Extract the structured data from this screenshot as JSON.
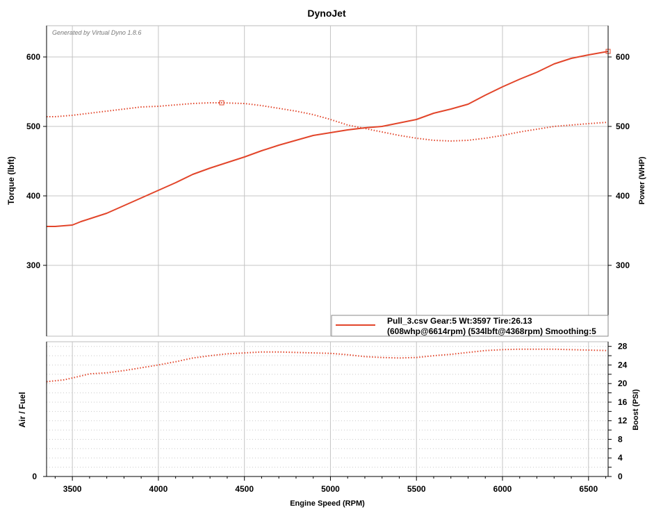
{
  "chart_data": [
    {
      "type": "line",
      "title": "DynoJet",
      "watermark": "Generated by Virtual Dyno 1.8.6",
      "xlabel": "Engine Speed (RPM)",
      "ylabel_left": "Torque (lbft)",
      "ylabel_right": "Power (WHP)",
      "xlim": [
        3350,
        6614
      ],
      "ylim": [
        198,
        645
      ],
      "x_ticks": [
        "3500",
        "4000",
        "4500",
        "5000",
        "5500",
        "6000",
        "6500"
      ],
      "x_tick_values": [
        3500,
        4000,
        4500,
        5000,
        5500,
        6000,
        6500
      ],
      "y_ticks_left": [
        "600",
        "500",
        "400",
        "300"
      ],
      "y_ticks_left_values": [
        600,
        500,
        400,
        300
      ],
      "y_ticks_right": [
        "600",
        "500",
        "400",
        "300"
      ],
      "y_ticks_right_values": [
        600,
        500,
        400,
        300
      ],
      "grid": true,
      "legend": {
        "line1": "Pull_3.csv Gear:5 Wt:3597 Tire:26.13",
        "line2": "(608whp@6614rpm) (534lbft@4368rpm) Smoothing:5",
        "placement": "bottom-right"
      },
      "colors": {
        "series": "#e2452a",
        "grid": "#c4c4c4"
      },
      "series": [
        {
          "role": "power",
          "style": "solid",
          "x": [
            3350,
            3400,
            3500,
            3550,
            3600,
            3700,
            3800,
            3900,
            4000,
            4100,
            4200,
            4300,
            4400,
            4500,
            4600,
            4700,
            4800,
            4900,
            5000,
            5100,
            5200,
            5300,
            5400,
            5500,
            5600,
            5700,
            5800,
            5900,
            6000,
            6100,
            6200,
            6300,
            6400,
            6500,
            6614
          ],
          "y": [
            356,
            356,
            358,
            363,
            367,
            375,
            386,
            397,
            408,
            419,
            431,
            440,
            448,
            456,
            465,
            473,
            480,
            487,
            491,
            495,
            498,
            500,
            505,
            510,
            519,
            525,
            532,
            545,
            557,
            568,
            578,
            590,
            598,
            603,
            608
          ]
        },
        {
          "role": "torque",
          "style": "dotted",
          "marker": {
            "x": 4368,
            "y": 534
          },
          "x": [
            3350,
            3400,
            3500,
            3600,
            3700,
            3800,
            3900,
            4000,
            4100,
            4200,
            4300,
            4368,
            4500,
            4600,
            4700,
            4800,
            4900,
            5000,
            5100,
            5200,
            5300,
            5400,
            5500,
            5600,
            5700,
            5800,
            5900,
            6000,
            6100,
            6200,
            6300,
            6400,
            6500,
            6614
          ],
          "y": [
            514,
            514,
            516,
            519,
            522,
            525,
            528,
            529,
            531,
            533,
            534,
            534,
            533,
            530,
            526,
            522,
            517,
            510,
            502,
            497,
            492,
            487,
            483,
            480,
            479,
            480,
            483,
            487,
            492,
            496,
            500,
            502,
            504,
            506
          ]
        }
      ]
    },
    {
      "type": "line",
      "ylabel_left": "Air / Fuel",
      "ylabel_right": "Boost (PSI)",
      "xlim": [
        3350,
        6614
      ],
      "ylim": [
        0,
        29
      ],
      "x_ticks": [
        "3500",
        "4000",
        "4500",
        "5000",
        "5500",
        "6000",
        "6500"
      ],
      "x_tick_values": [
        3500,
        4000,
        4500,
        5000,
        5500,
        6000,
        6500
      ],
      "y_ticks_left": [
        "0"
      ],
      "y_ticks_left_values": [
        0
      ],
      "y_ticks_right": [
        "0",
        "2",
        "4",
        "6",
        "8",
        "10",
        "12",
        "14",
        "16",
        "18",
        "20",
        "22",
        "24",
        "26",
        "28"
      ],
      "y_ticks_right_values": [
        0,
        2,
        4,
        6,
        8,
        10,
        12,
        14,
        16,
        18,
        20,
        22,
        24,
        26,
        28
      ],
      "y_ticks_right_labeled": [
        0,
        4,
        8,
        12,
        16,
        20,
        24,
        28
      ],
      "grid": true,
      "series": [
        {
          "role": "boost",
          "style": "dotted",
          "x": [
            3350,
            3450,
            3500,
            3600,
            3700,
            3800,
            3900,
            4000,
            4100,
            4200,
            4300,
            4400,
            4500,
            4600,
            4700,
            4800,
            4900,
            5000,
            5100,
            5200,
            5300,
            5400,
            5500,
            5600,
            5700,
            5800,
            5900,
            6000,
            6100,
            6200,
            6300,
            6400,
            6500,
            6614
          ],
          "y": [
            20.4,
            20.8,
            21.2,
            22.1,
            22.3,
            22.8,
            23.4,
            24.0,
            24.7,
            25.5,
            26.0,
            26.4,
            26.6,
            26.8,
            26.8,
            26.7,
            26.6,
            26.5,
            26.2,
            25.8,
            25.6,
            25.5,
            25.6,
            26.0,
            26.3,
            26.7,
            27.1,
            27.3,
            27.4,
            27.4,
            27.4,
            27.3,
            27.2,
            27.1
          ]
        }
      ]
    }
  ]
}
